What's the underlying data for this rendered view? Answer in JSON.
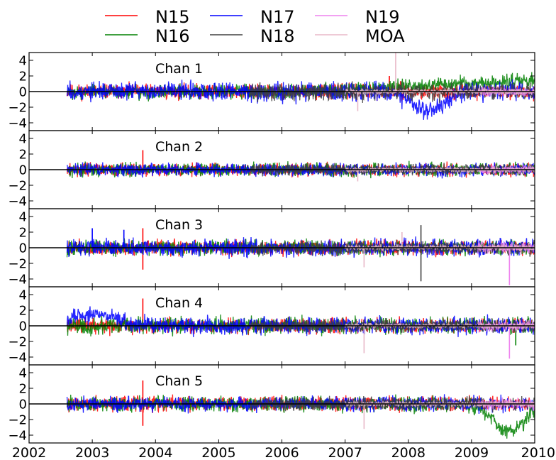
{
  "chart_data": {
    "type": "line",
    "legend": {
      "placement": "top-center",
      "entries": [
        {
          "name": "N15",
          "color": "#ff0000"
        },
        {
          "name": "N16",
          "color": "#008000"
        },
        {
          "name": "N17",
          "color": "#0000ff"
        },
        {
          "name": "N18",
          "color": "#404040"
        },
        {
          "name": "N19",
          "color": "#ee82ee"
        },
        {
          "name": "MOA",
          "color": "#e8b8c8"
        }
      ]
    },
    "xlim": [
      2002,
      2010
    ],
    "xticks": [
      "2002",
      "2003",
      "2004",
      "2005",
      "2006",
      "2007",
      "2008",
      "2009",
      "2010"
    ],
    "ylim": [
      -5,
      5
    ],
    "yticks": [
      "4",
      "2",
      "0",
      "−2",
      "−4"
    ],
    "grid": false,
    "panels": [
      {
        "label": "Chan 1",
        "series": [
          {
            "name": "N15",
            "color": "#ff0000",
            "x": [
              2002.6,
              2010.0
            ],
            "amplitude": 0.8,
            "spikes": [
              [
                2007.7,
                2.0
              ]
            ]
          },
          {
            "name": "N16",
            "color": "#008000",
            "x": [
              2002.6,
              2010.0
            ],
            "amplitude": 0.8,
            "trend_end": 1.5
          },
          {
            "name": "N17",
            "color": "#0000ff",
            "x": [
              2002.6,
              2010.0
            ],
            "amplitude": 1.0,
            "dip": [
              2008.3,
              -2.5
            ]
          },
          {
            "name": "N18",
            "color": "#404040",
            "x": [
              2005.5,
              2010.0
            ],
            "amplitude": 0.9
          },
          {
            "name": "N19",
            "color": "#ee82ee",
            "x": [
              2009.1,
              2010.0
            ],
            "amplitude": 0.5
          },
          {
            "name": "MOA",
            "color": "#e8b8c8",
            "x": [
              2007.0,
              2010.0
            ],
            "amplitude": 0.3,
            "spikes": [
              [
                2007.8,
                5.0
              ],
              [
                2007.2,
                -2.5
              ]
            ]
          }
        ]
      },
      {
        "label": "Chan 2",
        "series": [
          {
            "name": "N15",
            "color": "#ff0000",
            "x": [
              2002.6,
              2010.0
            ],
            "amplitude": 0.7,
            "spikes": [
              [
                2003.8,
                2.5
              ]
            ]
          },
          {
            "name": "N16",
            "color": "#008000",
            "x": [
              2002.6,
              2010.0
            ],
            "amplitude": 0.7
          },
          {
            "name": "N17",
            "color": "#0000ff",
            "x": [
              2002.6,
              2010.0
            ],
            "amplitude": 0.7
          },
          {
            "name": "N18",
            "color": "#404040",
            "x": [
              2005.5,
              2010.0
            ],
            "amplitude": 0.6
          },
          {
            "name": "N19",
            "color": "#ee82ee",
            "x": [
              2009.1,
              2010.0
            ],
            "amplitude": 0.5
          },
          {
            "name": "MOA",
            "color": "#e8b8c8",
            "x": [
              2007.0,
              2010.0
            ],
            "amplitude": 0.3,
            "spikes": [
              [
                2007.2,
                -1.5
              ]
            ]
          }
        ]
      },
      {
        "label": "Chan 3",
        "series": [
          {
            "name": "N15",
            "color": "#ff0000",
            "x": [
              2002.6,
              2010.0
            ],
            "amplitude": 0.8,
            "spikes": [
              [
                2003.8,
                2.5
              ],
              [
                2003.8,
                -2.8
              ]
            ]
          },
          {
            "name": "N16",
            "color": "#008000",
            "x": [
              2002.6,
              2010.0
            ],
            "amplitude": 0.8
          },
          {
            "name": "N17",
            "color": "#0000ff",
            "x": [
              2002.6,
              2010.0
            ],
            "amplitude": 0.9,
            "spikes": [
              [
                2003.0,
                2.5
              ],
              [
                2003.5,
                2.3
              ]
            ]
          },
          {
            "name": "N18",
            "color": "#404040",
            "x": [
              2005.5,
              2010.0
            ],
            "amplitude": 0.7,
            "spikes": [
              [
                2008.2,
                2.9
              ],
              [
                2008.2,
                -4.3
              ]
            ]
          },
          {
            "name": "N19",
            "color": "#ee82ee",
            "x": [
              2009.1,
              2010.0
            ],
            "amplitude": 0.6,
            "spikes": [
              [
                2009.6,
                -4.8
              ]
            ]
          },
          {
            "name": "MOA",
            "color": "#e8b8c8",
            "x": [
              2007.0,
              2010.0
            ],
            "amplitude": 0.3,
            "spikes": [
              [
                2007.3,
                -2.5
              ],
              [
                2007.9,
                2.0
              ]
            ]
          }
        ]
      },
      {
        "label": "Chan 4",
        "series": [
          {
            "name": "N15",
            "color": "#ff0000",
            "x": [
              2002.6,
              2010.0
            ],
            "amplitude": 0.8,
            "spikes": [
              [
                2003.8,
                3.5
              ]
            ]
          },
          {
            "name": "N16",
            "color": "#008000",
            "x": [
              2002.6,
              2010.0
            ],
            "amplitude": 0.9,
            "spikes": [
              [
                2009.7,
                -2.5
              ]
            ]
          },
          {
            "name": "N17",
            "color": "#0000ff",
            "x": [
              2002.6,
              2010.0
            ],
            "amplitude": 0.9,
            "bump": [
              2003.0,
              1.5
            ]
          },
          {
            "name": "N18",
            "color": "#404040",
            "x": [
              2005.5,
              2010.0
            ],
            "amplitude": 0.7
          },
          {
            "name": "N19",
            "color": "#ee82ee",
            "x": [
              2009.1,
              2010.0
            ],
            "amplitude": 0.6,
            "spikes": [
              [
                2009.6,
                -4.2
              ]
            ]
          },
          {
            "name": "MOA",
            "color": "#e8b8c8",
            "x": [
              2007.0,
              2010.0
            ],
            "amplitude": 0.3,
            "spikes": [
              [
                2007.3,
                -3.5
              ]
            ]
          }
        ]
      },
      {
        "label": "Chan 5",
        "series": [
          {
            "name": "N15",
            "color": "#ff0000",
            "x": [
              2002.6,
              2010.0
            ],
            "amplitude": 0.8,
            "spikes": [
              [
                2003.8,
                3.0
              ],
              [
                2003.8,
                -2.8
              ]
            ]
          },
          {
            "name": "N16",
            "color": "#008000",
            "x": [
              2002.6,
              2010.0
            ],
            "amplitude": 0.8,
            "dip": [
              2009.6,
              -3.5
            ]
          },
          {
            "name": "N17",
            "color": "#0000ff",
            "x": [
              2002.6,
              2010.0
            ],
            "amplitude": 0.8
          },
          {
            "name": "N18",
            "color": "#404040",
            "x": [
              2005.5,
              2010.0
            ],
            "amplitude": 0.7
          },
          {
            "name": "N19",
            "color": "#ee82ee",
            "x": [
              2009.1,
              2010.0
            ],
            "amplitude": 0.6
          },
          {
            "name": "MOA",
            "color": "#e8b8c8",
            "x": [
              2007.0,
              2010.0
            ],
            "amplitude": 0.3,
            "spikes": [
              [
                2007.3,
                -3.2
              ]
            ]
          }
        ]
      }
    ]
  }
}
